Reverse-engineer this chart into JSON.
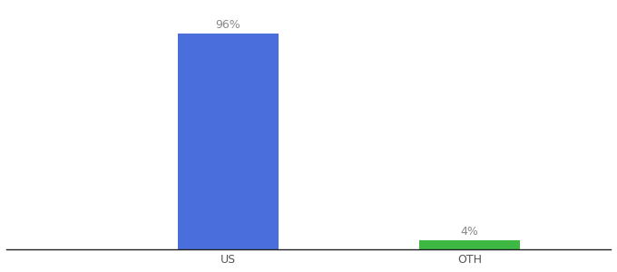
{
  "categories": [
    "US",
    "OTH"
  ],
  "values": [
    96,
    4
  ],
  "bar_colors": [
    "#4a6fdc",
    "#3db843"
  ],
  "value_labels": [
    "96%",
    "4%"
  ],
  "ylim": [
    0,
    108
  ],
  "background_color": "#ffffff",
  "label_fontsize": 9,
  "tick_fontsize": 9,
  "bar_width": 0.5,
  "xlim": [
    -0.6,
    2.4
  ],
  "bar_positions": [
    0.5,
    1.7
  ]
}
